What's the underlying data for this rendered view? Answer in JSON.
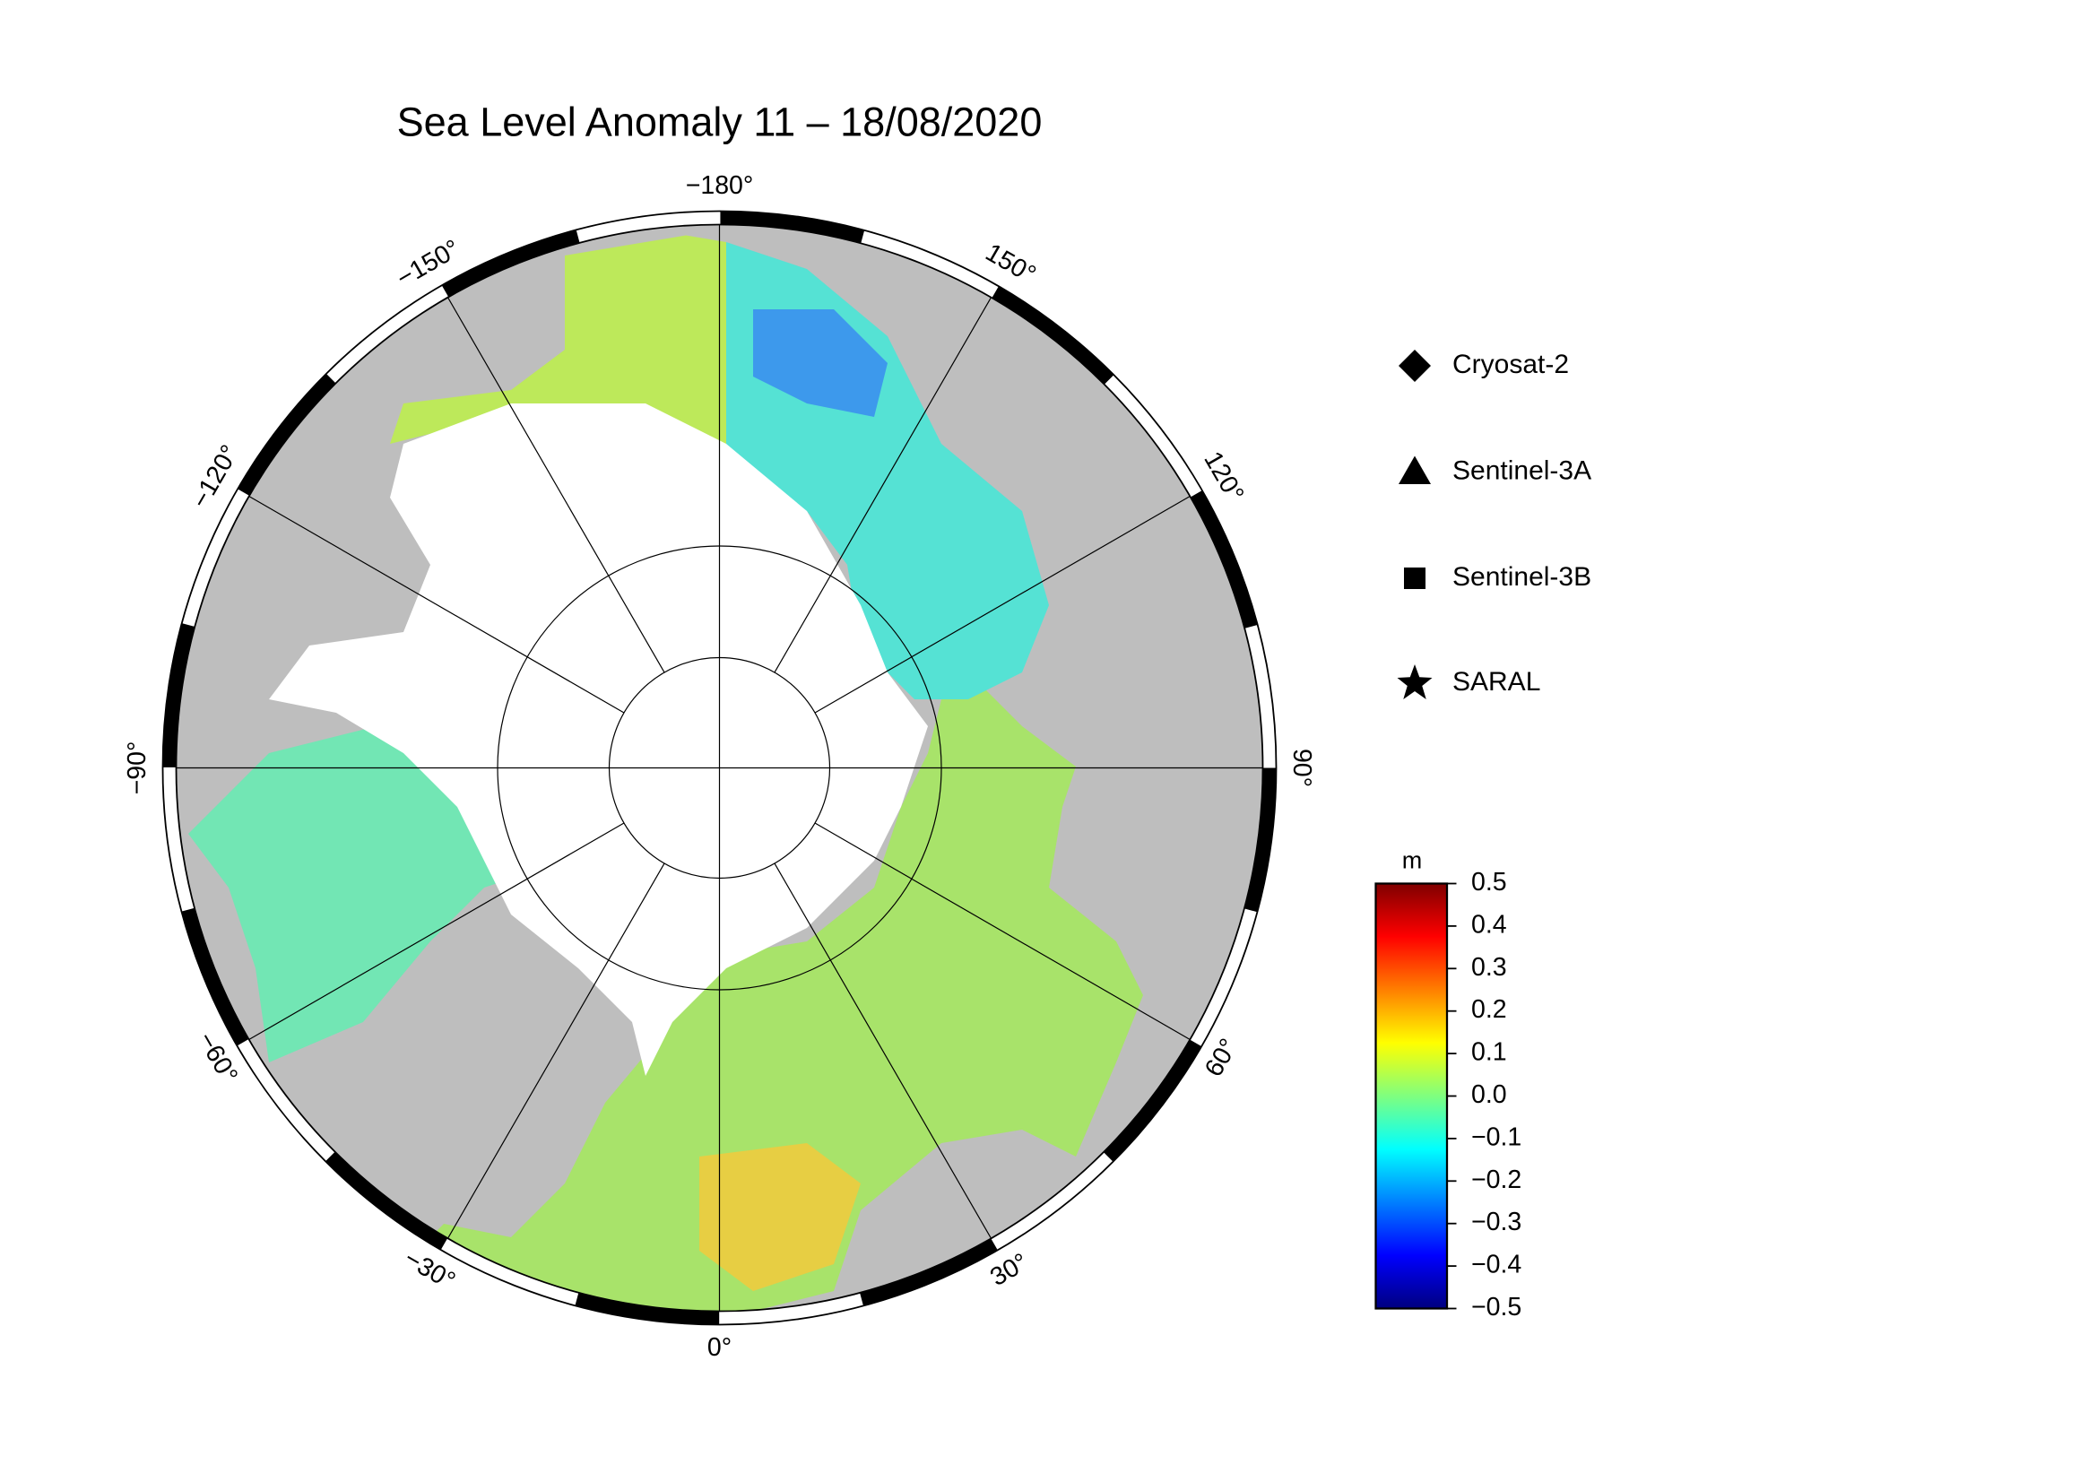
{
  "title": "Sea Level Anomaly 11 – 18/08/2020",
  "map": {
    "longitudes": [
      {
        "value": -180,
        "label": "−180°"
      },
      {
        "value": -150,
        "label": "−150°"
      },
      {
        "value": -120,
        "label": "−120°"
      },
      {
        "value": -90,
        "label": "−90°"
      },
      {
        "value": -60,
        "label": "−60°"
      },
      {
        "value": -30,
        "label": "−30°"
      },
      {
        "value": 0,
        "label": "0°"
      },
      {
        "value": 30,
        "label": "30°"
      },
      {
        "value": 60,
        "label": "60°"
      },
      {
        "value": 90,
        "label": "90°"
      },
      {
        "value": 120,
        "label": "120°"
      },
      {
        "value": 150,
        "label": "150°"
      }
    ]
  },
  "legend": {
    "items": [
      "Cryosat-2",
      "Sentinel-3A",
      "Sentinel-3B",
      "SARAL"
    ]
  },
  "colorbar": {
    "unit": "m",
    "lim": [
      -0.5,
      0.5
    ],
    "colors": [
      "#00007f",
      "#0000ff",
      "#007fff",
      "#00ffff",
      "#7fff7f",
      "#ffff00",
      "#ff7f00",
      "#ff0000",
      "#7f0000"
    ],
    "ticks": [
      {
        "value": -0.5,
        "label": "−0.5"
      },
      {
        "value": -0.4,
        "label": "−0.4"
      },
      {
        "value": -0.3,
        "label": "−0.3"
      },
      {
        "value": -0.2,
        "label": "−0.2"
      },
      {
        "value": -0.1,
        "label": "−0.1"
      },
      {
        "value": 0,
        "label": "0.0"
      },
      0.1,
      0.2,
      0.3,
      0.4,
      0.5
    ]
  }
}
